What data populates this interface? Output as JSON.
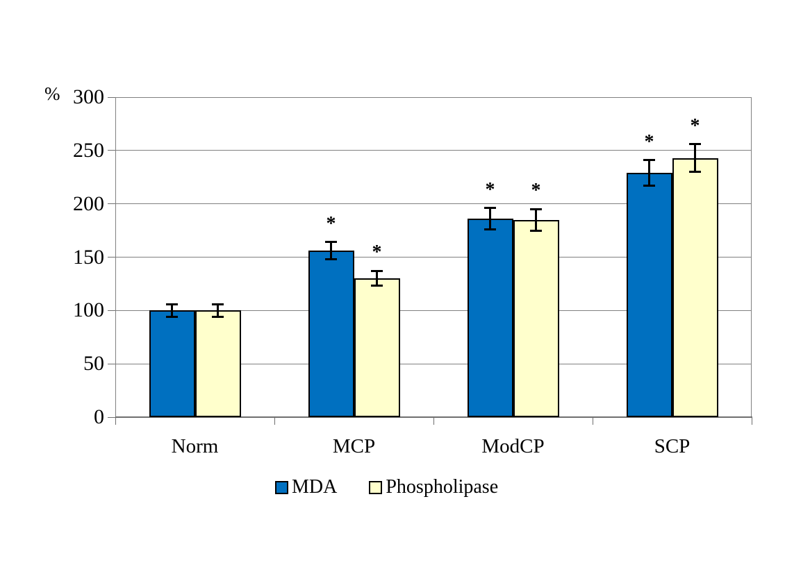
{
  "chart_data": {
    "type": "bar",
    "title": "",
    "categories": [
      "Norm",
      "MCP",
      "ModCP",
      "SCP"
    ],
    "series": [
      {
        "name": "MDA",
        "color": "#0070C0",
        "values": [
          100,
          156,
          186,
          229
        ],
        "errors": [
          6,
          8,
          10,
          12
        ],
        "significant": [
          false,
          true,
          true,
          true
        ]
      },
      {
        "name": "Phospholipase",
        "color": "#FFFFCC",
        "values": [
          100,
          130,
          185,
          243
        ],
        "errors": [
          6,
          7,
          10,
          13
        ],
        "significant": [
          false,
          true,
          true,
          true
        ]
      }
    ],
    "xlabel": "",
    "ylabel": "%",
    "yticks": [
      0,
      50,
      100,
      150,
      200,
      250,
      300
    ],
    "ylim": [
      0,
      300
    ],
    "grid": true,
    "legend_position": "bottom",
    "significance_marker": "*",
    "bar_border_color": "#000000",
    "error_bar_color": "#000000",
    "gridline_color": "#808080",
    "background_color": "#FFFFFF"
  }
}
